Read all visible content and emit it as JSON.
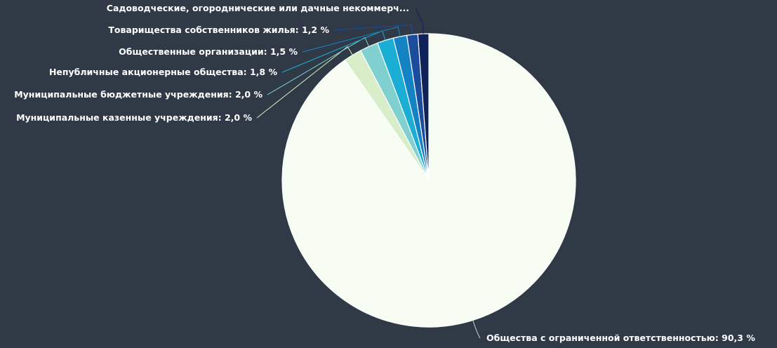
{
  "chart_data": {
    "type": "pie",
    "title": "",
    "slices": [
      {
        "label": "Общества с ограниченной ответственностью",
        "value_text": "90,3 %",
        "value": 90.3,
        "color": "#f7fdf3"
      },
      {
        "label": "Муниципальные казенные учреждения",
        "value_text": "2,0 %",
        "value": 2.0,
        "color": "#d8eec9"
      },
      {
        "label": "Муниципальные бюджетные учреждения",
        "value_text": "2,0 %",
        "value": 2.0,
        "color": "#7fd0cf"
      },
      {
        "label": "Непубличные акционерные общества",
        "value_text": "1,8 %",
        "value": 1.8,
        "color": "#1aaed4"
      },
      {
        "label": "Общественные организации",
        "value_text": "1,5 %",
        "value": 1.5,
        "color": "#1583c3"
      },
      {
        "label": "Товарищества собственников жилья",
        "value_text": "1,2 %",
        "value": 1.2,
        "color": "#1c4d9c"
      },
      {
        "label": "Садоводческие, огороднические или дачные некоммерч...",
        "value_text": "",
        "value": 1.2,
        "color": "#0f2259"
      }
    ]
  }
}
